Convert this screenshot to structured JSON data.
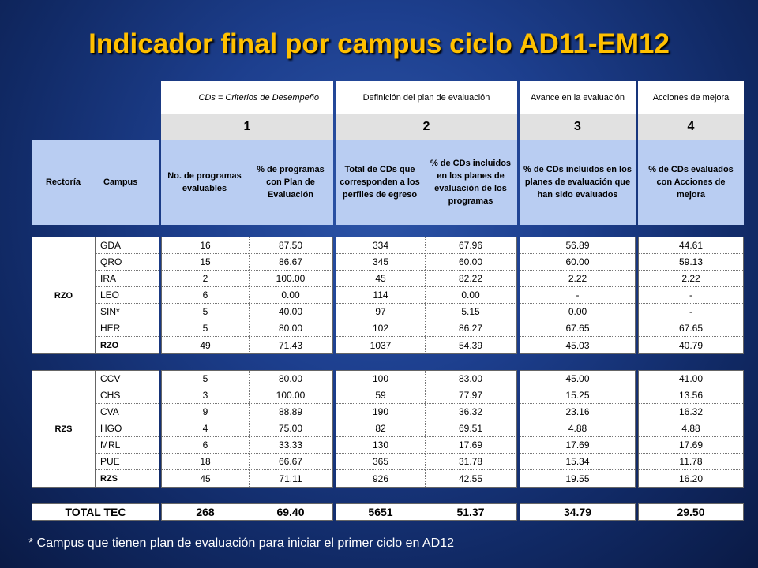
{
  "title": "Indicador final por campus ciclo AD11-EM12",
  "header": {
    "cd_note": "CDs = Criterios de Desempeño",
    "group_labels": [
      "Definición del plan de evaluación",
      "Avance en la evaluación",
      "Acciones de mejora"
    ],
    "numbers": [
      "1",
      "2",
      "3",
      "4"
    ],
    "columns": {
      "rectoria": "Rectoría",
      "campus": "Campus",
      "c1": "No. de programas evaluables",
      "c2": "% de programas con Plan de Evaluación",
      "c3": "Total de CDs que corresponden a los perfiles de egreso",
      "c4": "% de CDs incluidos en los planes de evaluación de los programas",
      "c5": "% de CDs incluidos en los planes de evaluación que han sido evaluados",
      "c6": "% de CDs evaluados con Acciones de mejora"
    }
  },
  "groups": [
    {
      "rectoria": "RZO",
      "rows": [
        [
          "GDA",
          "16",
          "87.50",
          "334",
          "67.96",
          "56.89",
          "44.61"
        ],
        [
          "QRO",
          "15",
          "86.67",
          "345",
          "60.00",
          "60.00",
          "59.13"
        ],
        [
          "IRA",
          "2",
          "100.00",
          "45",
          "82.22",
          "2.22",
          "2.22"
        ],
        [
          "LEO",
          "6",
          "0.00",
          "114",
          "0.00",
          "-",
          "-"
        ],
        [
          "SIN*",
          "5",
          "40.00",
          "97",
          "5.15",
          "0.00",
          "-"
        ],
        [
          "HER",
          "5",
          "80.00",
          "102",
          "86.27",
          "67.65",
          "67.65"
        ],
        [
          "RZO",
          "49",
          "71.43",
          "1037",
          "54.39",
          "45.03",
          "40.79"
        ]
      ]
    },
    {
      "rectoria": "RZS",
      "rows": [
        [
          "CCV",
          "5",
          "80.00",
          "100",
          "83.00",
          "45.00",
          "41.00"
        ],
        [
          "CHS",
          "3",
          "100.00",
          "59",
          "77.97",
          "15.25",
          "13.56"
        ],
        [
          "CVA",
          "9",
          "88.89",
          "190",
          "36.32",
          "23.16",
          "16.32"
        ],
        [
          "HGO",
          "4",
          "75.00",
          "82",
          "69.51",
          "4.88",
          "4.88"
        ],
        [
          "MRL",
          "6",
          "33.33",
          "130",
          "17.69",
          "17.69",
          "17.69"
        ],
        [
          "PUE",
          "18",
          "66.67",
          "365",
          "31.78",
          "15.34",
          "11.78"
        ],
        [
          "RZS",
          "45",
          "71.11",
          "926",
          "42.55",
          "19.55",
          "16.20"
        ]
      ]
    }
  ],
  "total": [
    "TOTAL TEC",
    "268",
    "69.40",
    "5651",
    "51.37",
    "34.79",
    "29.50"
  ],
  "footnote": "* Campus que tienen plan de evaluación para iniciar el primer ciclo en AD12"
}
